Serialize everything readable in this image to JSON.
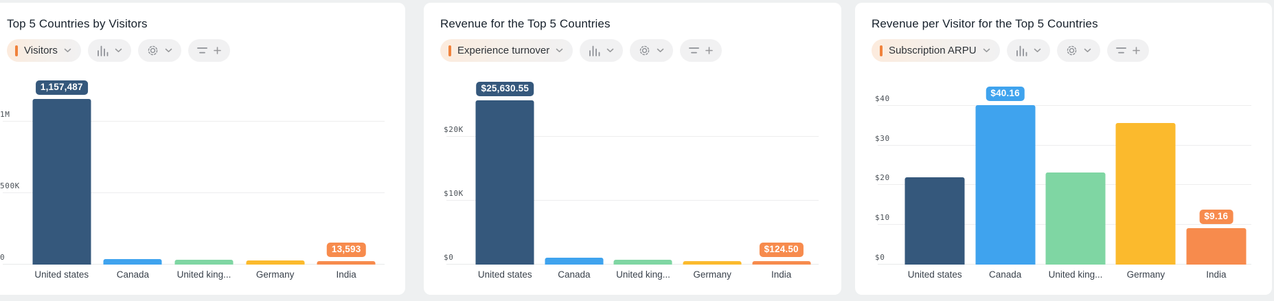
{
  "page": {
    "background": "#eef0f1"
  },
  "toolbar_icons": {
    "chart_type": "bar-chart-icon",
    "settings": "gear-icon",
    "filter": "filter-icon",
    "add": "plus-icon",
    "dropdown": "chevron-down-icon"
  },
  "colors": {
    "accent_orange": "#f0823c",
    "bar_palette": [
      "#35587c",
      "#3fa3ee",
      "#7fd6a3",
      "#fbba2d",
      "#f78b4d"
    ],
    "pill_gray": "#f1f1f2",
    "gridline": "#ededee"
  },
  "panels": [
    {
      "title": "Top 5 Countries by Visitors",
      "toolbar": {
        "metric_label": "Visitors"
      },
      "chart_data": {
        "type": "bar",
        "categories": [
          "United states",
          "Canada",
          "United king...",
          "Germany",
          "India"
        ],
        "values": [
          1157487,
          38000,
          33000,
          28000,
          13593
        ],
        "colors": [
          "#35587c",
          "#3fa3ee",
          "#7fd6a3",
          "#fbba2d",
          "#f78b4d"
        ],
        "data_labels": {
          "0": "1,157,487",
          "4": "13,593"
        },
        "yticks": [
          {
            "label": "1M",
            "value": 1000000
          },
          {
            "label": "500K",
            "value": 500000
          },
          {
            "label": "0",
            "value": 0
          }
        ],
        "ylim": [
          0,
          1370000
        ],
        "grid": "horizontal",
        "legend": "none"
      }
    },
    {
      "title": "Revenue for the Top 5 Countries",
      "toolbar": {
        "metric_label": "Experience turnover"
      },
      "chart_data": {
        "type": "bar",
        "categories": [
          "United states",
          "Canada",
          "United king...",
          "Germany",
          "India"
        ],
        "values": [
          25630.55,
          1100,
          750,
          550,
          124.5
        ],
        "colors": [
          "#35587c",
          "#3fa3ee",
          "#7fd6a3",
          "#fbba2d",
          "#f78b4d"
        ],
        "data_labels": {
          "0": "$25,630.55",
          "4": "$124.50"
        },
        "yticks": [
          {
            "label": "$20K",
            "value": 20000
          },
          {
            "label": "$10K",
            "value": 10000
          },
          {
            "label": "$0",
            "value": 0
          }
        ],
        "ylim": [
          0,
          30600
        ],
        "grid": "horizontal",
        "legend": "none"
      }
    },
    {
      "title": "Revenue per Visitor for the Top 5 Countries",
      "toolbar": {
        "metric_label": "Subscription ARPU"
      },
      "chart_data": {
        "type": "bar",
        "categories": [
          "United states",
          "Canada",
          "United king...",
          "Germany",
          "India"
        ],
        "values": [
          21.9,
          40.16,
          23.2,
          35.7,
          9.16
        ],
        "colors": [
          "#35587c",
          "#3fa3ee",
          "#7fd6a3",
          "#fbba2d",
          "#f78b4d"
        ],
        "data_labels": {
          "1": "$40.16",
          "4": "$9.16"
        },
        "yticks": [
          {
            "label": "$40",
            "value": 40
          },
          {
            "label": "$30",
            "value": 30
          },
          {
            "label": "$20",
            "value": 20
          },
          {
            "label": "$10",
            "value": 10
          },
          {
            "label": "$0",
            "value": 0
          }
        ],
        "ylim": [
          0,
          49.3
        ],
        "grid": "horizontal",
        "legend": "none"
      }
    }
  ]
}
